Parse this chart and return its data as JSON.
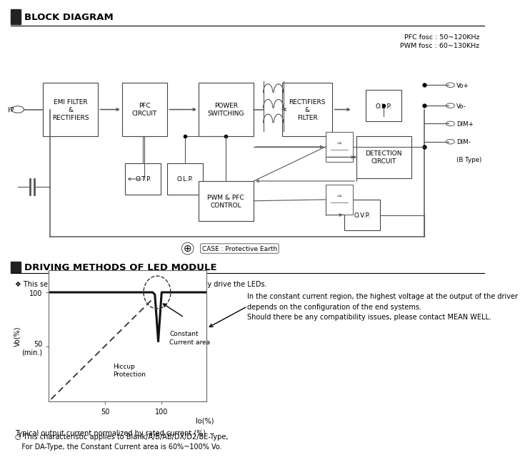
{
  "block_diagram_title": "BLOCK DIAGRAM",
  "driving_title": "DRIVING METHODS OF LED MODULE",
  "pfc_text": "PFC fosc : 50~120KHz\nPWM fosc : 60~130KHz",
  "series_note": "❖ This series works in constant current mode to directly drive the LEDs.",
  "note_text": "In the constant current region, the highest voltage at the output of the driver\ndepends on the configuration of the end systems.\nShould there be any compatibility issues, please contact MEAN WELL.",
  "caption": "Typical output current normalized by rated current (%)",
  "footnote": "○ This characteristic applies to Blank/A/B/AB/DX/D2/BE-Type,\n   For DA-Type, the Constant Current area is 60%~100% Vo.",
  "constant_label": "Constant\nCurrent area",
  "hiccup_label": "Hiccup\nProtection",
  "io_label": "Io(%)",
  "vo_label": "Vo(%)",
  "case_label": "CASE : Protective Earth",
  "lc": "#555555",
  "bc": "#333333"
}
